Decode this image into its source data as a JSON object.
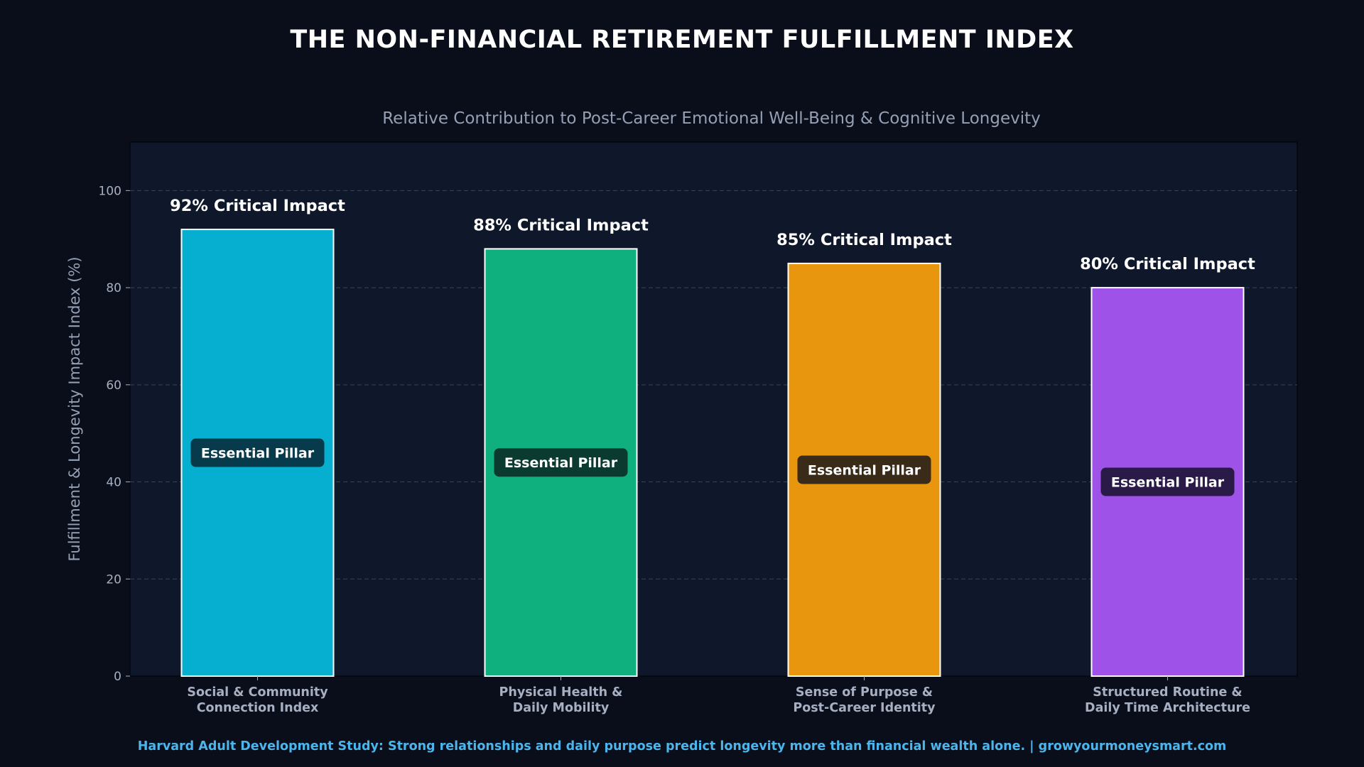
{
  "header": {
    "title": "THE NON-FINANCIAL RETIREMENT FULFILLMENT INDEX"
  },
  "footer": {
    "text": "Harvard Adult Development Study: Strong relationships and daily purpose predict longevity more than financial wealth alone. | growyourmoneysmart.com"
  },
  "chart_data": {
    "type": "bar",
    "title": "THE NON-FINANCIAL RETIREMENT FULFILLMENT INDEX",
    "subtitle": "Relative Contribution to Post-Career Emotional Well-Being & Cognitive Longevity",
    "xlabel": "",
    "ylabel": "Fulfillment & Longevity Impact Index (%)",
    "ylim": [
      0,
      110
    ],
    "yticks": [
      0,
      20,
      40,
      60,
      80,
      100
    ],
    "grid": true,
    "categories": [
      [
        "Social & Community",
        "Connection Index"
      ],
      [
        "Physical Health &",
        "Daily Mobility"
      ],
      [
        "Sense of Purpose &",
        "Post-Career Identity"
      ],
      [
        "Structured Routine &",
        "Daily Time Architecture"
      ]
    ],
    "values": [
      92,
      88,
      85,
      80
    ],
    "data_labels": [
      "92% Critical Impact",
      "88% Critical Impact",
      "85% Critical Impact",
      "80% Critical Impact"
    ],
    "inner_labels": [
      "Essential Pillar",
      "Essential Pillar",
      "Essential Pillar",
      "Essential Pillar"
    ],
    "colors": [
      "#06aed0",
      "#10b07e",
      "#e8960e",
      "#9e52e8"
    ],
    "inner_label_bg": [
      "#073a4a",
      "#0a3a30",
      "#3a2a18",
      "#2a1a48"
    ]
  }
}
